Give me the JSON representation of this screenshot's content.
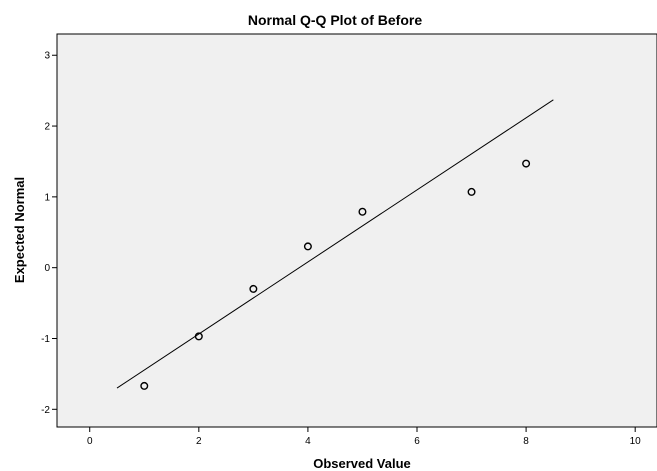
{
  "chart_data": {
    "type": "scatter",
    "title": "Normal Q-Q Plot of Before",
    "xlabel": "Observed Value",
    "ylabel": "Expected Normal",
    "xlim": [
      -0.6,
      10.4
    ],
    "ylim": [
      -2.25,
      3.3
    ],
    "x_ticks": [
      0,
      2,
      4,
      6,
      8,
      10
    ],
    "y_ticks": [
      -2,
      -1,
      0,
      1,
      2,
      3
    ],
    "grid": false,
    "points": [
      {
        "x": 1,
        "y": -1.67
      },
      {
        "x": 2,
        "y": -0.97
      },
      {
        "x": 3,
        "y": -0.3
      },
      {
        "x": 4,
        "y": 0.3
      },
      {
        "x": 5,
        "y": 0.79
      },
      {
        "x": 7,
        "y": 1.07
      },
      {
        "x": 8,
        "y": 1.47
      }
    ],
    "reference_line": {
      "x": [
        0.5,
        8.5
      ],
      "y": [
        -1.7,
        2.37
      ]
    },
    "colors": {
      "background": "#ffffff",
      "plot_area": "#f0f0f0",
      "marker_stroke": "#000000",
      "line": "#000000"
    }
  }
}
